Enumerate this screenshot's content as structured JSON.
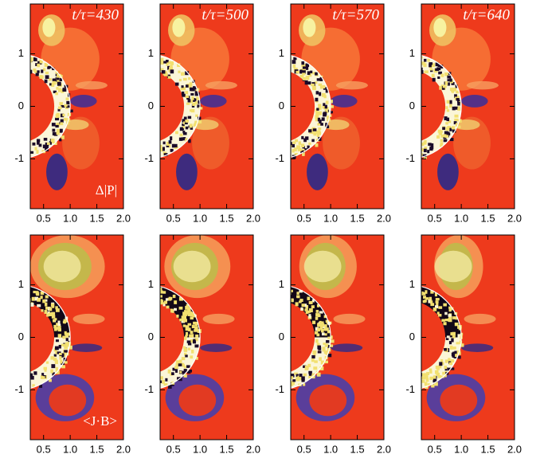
{
  "chart_data": [
    {
      "type": "contour",
      "title": "t/τ=430",
      "annotation": "Δ|P|",
      "xlim": [
        0.25,
        2.0
      ],
      "ylim": [
        -1.95,
        1.95
      ],
      "xticks": [
        0.5,
        {
          "value": 1,
          "label": "1.0"
        },
        1.5,
        {
          "value": 2,
          "label": "2.0"
        }
      ],
      "yticks": [
        -1,
        0,
        1
      ]
    },
    {
      "type": "contour",
      "title": "t/τ=500",
      "xlim": [
        0.25,
        2.0
      ],
      "ylim": [
        -1.95,
        1.95
      ],
      "xticks": [
        0.5,
        {
          "value": 1,
          "label": "1.0"
        },
        1.5,
        {
          "value": 2,
          "label": "2.0"
        }
      ],
      "yticks": [
        -1,
        0,
        1
      ]
    },
    {
      "type": "contour",
      "title": "t/τ=570",
      "xlim": [
        0.25,
        2.0
      ],
      "ylim": [
        -1.95,
        1.95
      ],
      "xticks": [
        0.5,
        {
          "value": 1,
          "label": "1.0"
        },
        1.5,
        {
          "value": 2,
          "label": "2.0"
        }
      ],
      "yticks": [
        -1,
        0,
        1
      ]
    },
    {
      "type": "contour",
      "title": "t/τ=640",
      "xlim": [
        0.25,
        2.0
      ],
      "ylim": [
        -1.95,
        1.95
      ],
      "xticks": [
        0.5,
        {
          "value": 1,
          "label": "1.0"
        },
        1.5,
        {
          "value": 2,
          "label": "2.0"
        }
      ],
      "yticks": [
        -1,
        0,
        1
      ]
    },
    {
      "type": "contour",
      "annotation": "<J·B>",
      "xlim": [
        0.25,
        2.0
      ],
      "ylim": [
        -1.95,
        1.95
      ],
      "xticks": [
        0.5,
        {
          "value": 1,
          "label": "1.0"
        },
        1.5,
        {
          "value": 2,
          "label": "2.0"
        }
      ],
      "yticks": [
        -1,
        0,
        1
      ]
    },
    {
      "type": "contour",
      "xlim": [
        0.25,
        2.0
      ],
      "ylim": [
        -1.95,
        1.95
      ],
      "xticks": [
        0.5,
        {
          "value": 1,
          "label": "1.0"
        },
        1.5,
        {
          "value": 2,
          "label": "2.0"
        }
      ],
      "yticks": [
        -1,
        0,
        1
      ]
    },
    {
      "type": "contour",
      "xlim": [
        0.25,
        2.0
      ],
      "ylim": [
        -1.95,
        1.95
      ],
      "xticks": [
        0.5,
        {
          "value": 1,
          "label": "1.0"
        },
        1.5,
        {
          "value": 2,
          "label": "2.0"
        }
      ],
      "yticks": [
        -1,
        0,
        1
      ]
    },
    {
      "type": "contour",
      "xlim": [
        0.25,
        2.0
      ],
      "ylim": [
        -1.95,
        1.95
      ],
      "xticks": [
        0.5,
        {
          "value": 1,
          "label": "1.0"
        },
        1.5,
        {
          "value": 2,
          "label": "2.0"
        }
      ],
      "yticks": [
        -1,
        0,
        1
      ]
    }
  ]
}
